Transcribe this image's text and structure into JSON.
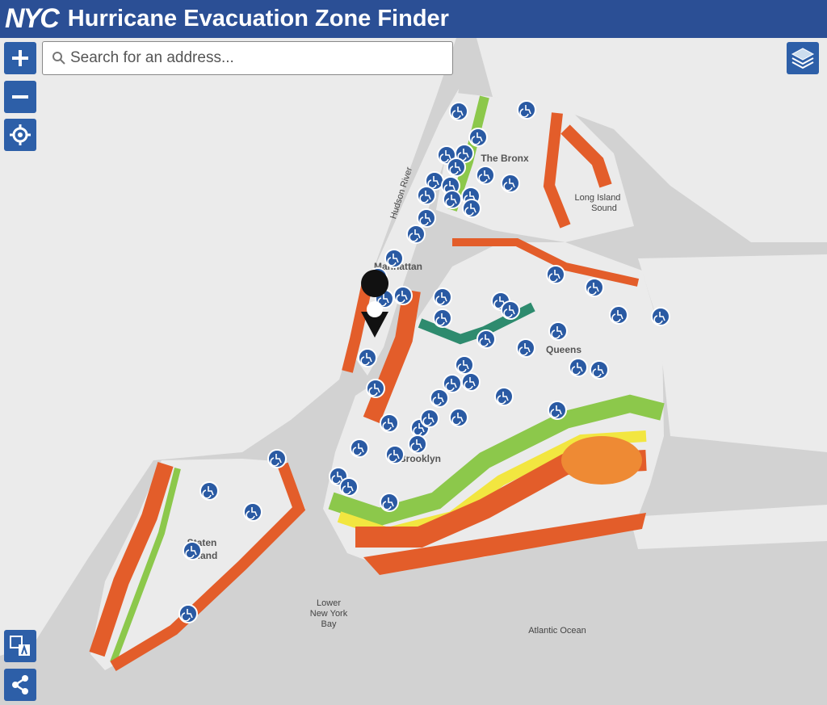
{
  "header": {
    "logo": "NYC",
    "title": "Hurricane Evacuation Zone Finder"
  },
  "search": {
    "placeholder": "Search for an address..."
  },
  "map_labels": {
    "bronx": "The Bronx",
    "sound": [
      "Long Island",
      "Sound"
    ],
    "hudson": "Hudson River",
    "manhattan": "Manhattan",
    "queens": "Queens",
    "brooklyn": "Brooklyn",
    "staten": [
      "Staten",
      "Island"
    ],
    "bay": [
      "Lower",
      "New York",
      "Bay"
    ],
    "ocean": "Atlantic Ocean"
  }
}
